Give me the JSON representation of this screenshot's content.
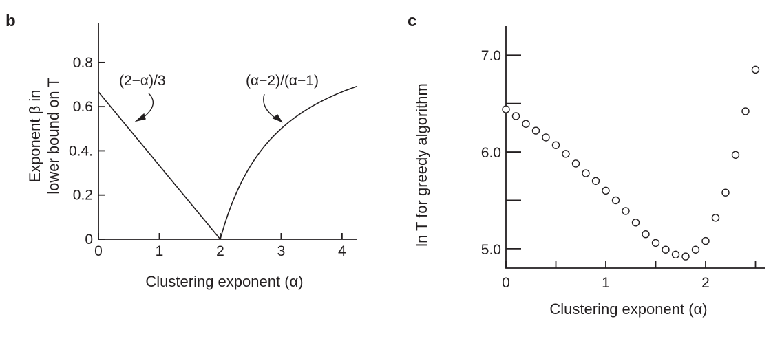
{
  "chart_data": [
    {
      "type": "line",
      "panel_label": "b",
      "xlabel": "Clustering exponent (α)",
      "ylabel_line1": "Exponent β in",
      "ylabel_line2": "lower bound on T",
      "xlim": [
        0,
        4.25
      ],
      "ylim": [
        0,
        0.98
      ],
      "x_ticks": [
        0,
        1,
        2,
        3,
        4
      ],
      "x_tick_labels": [
        "0",
        "1",
        "2",
        "3",
        "4"
      ],
      "y_ticks": [
        0,
        0.2,
        0.4,
        0.6,
        0.8
      ],
      "y_tick_labels": [
        "0",
        "0.2",
        "0.4.",
        "0.6",
        "0.8"
      ],
      "series": [
        {
          "label": "(2−α)/3",
          "formula": "(2-a)/3",
          "x_range": [
            0,
            2
          ]
        },
        {
          "label": "(α−2)/(α−1)",
          "formula": "(a-2)/(a-1)",
          "x_range": [
            2,
            4.25
          ]
        }
      ]
    },
    {
      "type": "scatter",
      "panel_label": "c",
      "xlabel": "Clustering exponent (α)",
      "ylabel": "ln T for  greedy algorithm",
      "xlim": [
        0,
        2.6
      ],
      "ylim": [
        4.8,
        7.3
      ],
      "x_major_ticks": [
        0,
        1,
        2
      ],
      "x_tick_labels": [
        "0",
        "1",
        "2"
      ],
      "x_minor_ticks": [
        0.5,
        1.5,
        2.5
      ],
      "y_major_ticks": [
        5.0,
        6.0,
        7.0
      ],
      "y_tick_labels": [
        "5.0",
        "6.0",
        "7.0"
      ],
      "y_minor_ticks": [
        5.5,
        6.5
      ],
      "points": [
        [
          0.0,
          6.44
        ],
        [
          0.1,
          6.37
        ],
        [
          0.2,
          6.29
        ],
        [
          0.3,
          6.22
        ],
        [
          0.4,
          6.15
        ],
        [
          0.5,
          6.07
        ],
        [
          0.6,
          5.98
        ],
        [
          0.7,
          5.88
        ],
        [
          0.8,
          5.78
        ],
        [
          0.9,
          5.7
        ],
        [
          1.0,
          5.6
        ],
        [
          1.1,
          5.5
        ],
        [
          1.2,
          5.39
        ],
        [
          1.3,
          5.27
        ],
        [
          1.4,
          5.15
        ],
        [
          1.5,
          5.06
        ],
        [
          1.6,
          4.99
        ],
        [
          1.7,
          4.94
        ],
        [
          1.8,
          4.92
        ],
        [
          1.9,
          4.99
        ],
        [
          2.0,
          5.08
        ],
        [
          2.1,
          5.32
        ],
        [
          2.2,
          5.58
        ],
        [
          2.3,
          5.97
        ],
        [
          2.4,
          6.42
        ],
        [
          2.5,
          6.85
        ]
      ]
    }
  ]
}
